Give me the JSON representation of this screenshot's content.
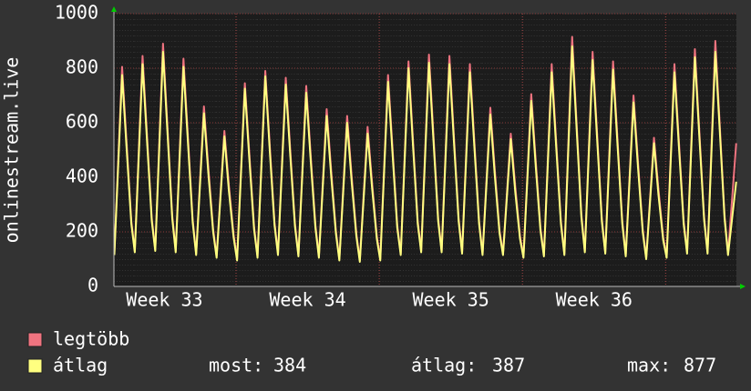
{
  "chart_data": {
    "type": "line",
    "ylabel": "onlinestream.live",
    "xlim": [
      1.03,
      31.46
    ],
    "ylim": [
      0,
      1000
    ],
    "yticks": [
      0,
      200,
      400,
      600,
      800,
      1000
    ],
    "xticks": [
      {
        "value": 3.5,
        "label": "Week 33"
      },
      {
        "value": 10.5,
        "label": "Week 34"
      },
      {
        "value": 17.5,
        "label": "Week 35"
      },
      {
        "value": 24.5,
        "label": "Week 36"
      }
    ],
    "xgrid": [
      7,
      14,
      21,
      28
    ],
    "grid": true,
    "x": [
      1.05,
      1.43,
      1.65,
      1.88,
      2.05,
      2.43,
      2.65,
      2.88,
      3.05,
      3.43,
      3.65,
      3.88,
      4.05,
      4.43,
      4.65,
      4.88,
      5.05,
      5.43,
      5.65,
      5.88,
      6.05,
      6.43,
      6.65,
      6.88,
      7.05,
      7.43,
      7.65,
      7.88,
      8.05,
      8.43,
      8.65,
      8.88,
      9.05,
      9.43,
      9.65,
      9.88,
      10.05,
      10.43,
      10.65,
      10.88,
      11.05,
      11.43,
      11.65,
      11.88,
      12.05,
      12.43,
      12.65,
      12.88,
      13.05,
      13.43,
      13.65,
      13.88,
      14.05,
      14.43,
      14.65,
      14.88,
      15.05,
      15.43,
      15.65,
      15.88,
      16.05,
      16.43,
      16.65,
      16.88,
      17.05,
      17.43,
      17.65,
      17.88,
      18.05,
      18.43,
      18.65,
      18.88,
      19.05,
      19.43,
      19.65,
      19.88,
      20.05,
      20.43,
      20.65,
      20.88,
      21.05,
      21.43,
      21.65,
      21.88,
      22.05,
      22.43,
      22.65,
      22.88,
      23.05,
      23.43,
      23.65,
      23.88,
      24.05,
      24.43,
      24.65,
      24.88,
      25.05,
      25.43,
      25.65,
      25.88,
      26.05,
      26.43,
      26.65,
      26.88,
      27.05,
      27.43,
      27.65,
      27.88,
      28.05,
      28.43,
      28.65,
      28.88,
      29.05,
      29.43,
      29.65,
      29.88,
      30.05,
      30.43,
      30.65,
      30.88,
      31.05,
      31.45
    ],
    "series": [
      {
        "name": "legtöbb",
        "color": "#f07480",
        "values": [
          120,
          805,
          525,
          240,
          130,
          845,
          550,
          250,
          135,
          890,
          580,
          260,
          130,
          835,
          545,
          245,
          120,
          660,
          430,
          210,
          110,
          570,
          370,
          190,
          100,
          745,
          485,
          220,
          110,
          790,
          515,
          235,
          120,
          765,
          500,
          230,
          115,
          735,
          480,
          225,
          110,
          650,
          425,
          205,
          100,
          625,
          405,
          195,
          95,
          585,
          380,
          185,
          100,
          775,
          505,
          225,
          120,
          825,
          535,
          240,
          130,
          850,
          555,
          250,
          130,
          845,
          550,
          250,
          125,
          815,
          530,
          240,
          120,
          655,
          425,
          205,
          120,
          560,
          365,
          185,
          110,
          705,
          460,
          215,
          115,
          815,
          530,
          240,
          120,
          915,
          595,
          265,
          130,
          860,
          560,
          250,
          125,
          825,
          535,
          240,
          115,
          700,
          455,
          210,
          105,
          545,
          355,
          180,
          110,
          815,
          530,
          240,
          125,
          870,
          565,
          255,
          125,
          900,
          585,
          260,
          120,
          525
        ]
      },
      {
        "name": "átlag",
        "color": "#ffff80",
        "values": [
          115,
          775,
          505,
          230,
          125,
          815,
          530,
          240,
          130,
          860,
          560,
          250,
          125,
          805,
          525,
          235,
          115,
          635,
          410,
          200,
          105,
          550,
          350,
          180,
          95,
          725,
          465,
          210,
          105,
          770,
          495,
          225,
          115,
          740,
          480,
          220,
          110,
          710,
          460,
          215,
          105,
          625,
          405,
          195,
          95,
          600,
          385,
          185,
          90,
          560,
          360,
          175,
          95,
          750,
          485,
          215,
          115,
          800,
          515,
          230,
          125,
          820,
          535,
          240,
          125,
          815,
          530,
          240,
          120,
          785,
          510,
          230,
          115,
          630,
          405,
          195,
          115,
          540,
          345,
          175,
          105,
          680,
          440,
          205,
          110,
          785,
          510,
          230,
          115,
          880,
          575,
          255,
          125,
          830,
          540,
          240,
          120,
          795,
          515,
          230,
          110,
          675,
          435,
          200,
          100,
          525,
          335,
          170,
          105,
          785,
          510,
          230,
          120,
          840,
          545,
          245,
          120,
          860,
          565,
          250,
          115,
          384
        ]
      }
    ],
    "stats": [
      {
        "label": "most:",
        "value": 384
      },
      {
        "label": "átlag:",
        "value": 387
      },
      {
        "label": "max:",
        "value": 877
      }
    ]
  }
}
